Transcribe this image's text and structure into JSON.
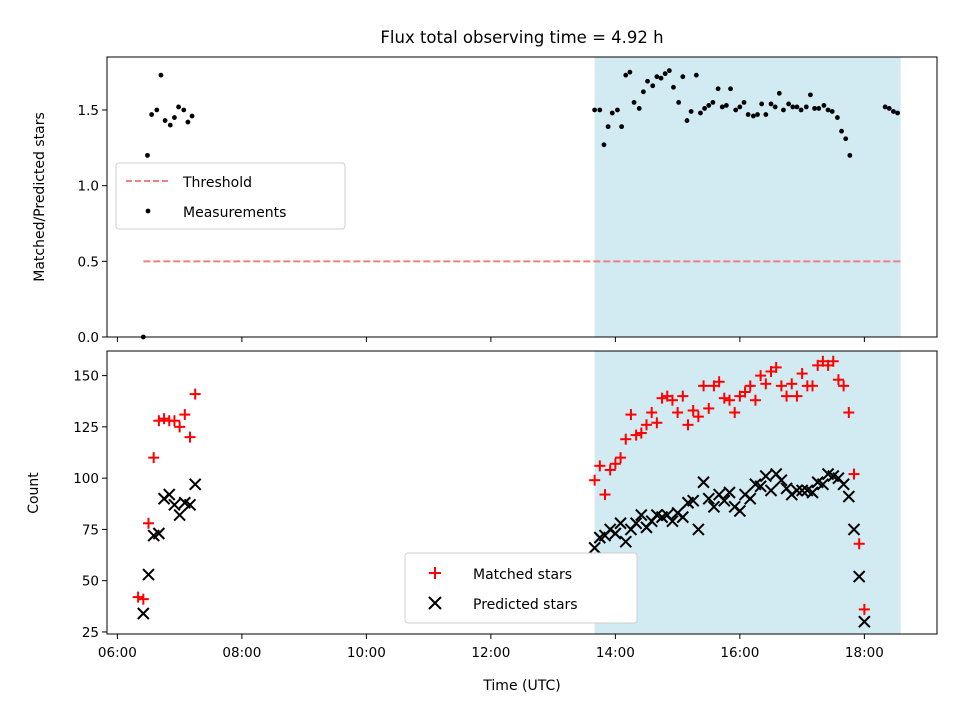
{
  "figure": {
    "title": "Flux total observing time = 4.92 h",
    "shaded_window": {
      "start": "13:40",
      "end": "18:35",
      "color": "#add8e6"
    },
    "x_axis": {
      "label": "Time (UTC)",
      "ticks": [
        "06:00",
        "08:00",
        "10:00",
        "12:00",
        "14:00",
        "16:00",
        "18:00"
      ],
      "range": [
        "05:50",
        "19:10"
      ]
    }
  },
  "chart_data": [
    {
      "type": "scatter",
      "ylabel": "Matched/Predicted stars",
      "ylim": [
        0,
        1.85
      ],
      "yticks": [
        0.0,
        0.5,
        1.0,
        1.5
      ],
      "legend": {
        "position": "center-left",
        "entries": [
          "Threshold",
          "Measurements"
        ]
      },
      "series": [
        {
          "name": "Threshold",
          "kind": "dashed-line",
          "color": "#f08080",
          "points": [
            [
              "06:25",
              0.5
            ],
            [
              "18:35",
              0.5
            ]
          ]
        },
        {
          "name": "Measurements",
          "kind": "dot",
          "color": "#000000",
          "points": [
            [
              "06:25",
              0.0
            ],
            [
              "06:29",
              1.2
            ],
            [
              "06:33",
              1.47
            ],
            [
              "06:38",
              1.5
            ],
            [
              "06:42",
              1.73
            ],
            [
              "06:46",
              1.43
            ],
            [
              "06:51",
              1.4
            ],
            [
              "06:55",
              1.45
            ],
            [
              "06:59",
              1.52
            ],
            [
              "07:04",
              1.5
            ],
            [
              "07:08",
              1.42
            ],
            [
              "07:12",
              1.46
            ],
            [
              "13:40",
              1.5
            ],
            [
              "13:45",
              1.5
            ],
            [
              "13:49",
              1.27
            ],
            [
              "13:53",
              1.39
            ],
            [
              "13:57",
              1.48
            ],
            [
              "14:02",
              1.5
            ],
            [
              "14:06",
              1.39
            ],
            [
              "14:10",
              1.73
            ],
            [
              "14:14",
              1.75
            ],
            [
              "14:18",
              1.55
            ],
            [
              "14:23",
              1.51
            ],
            [
              "14:27",
              1.62
            ],
            [
              "14:31",
              1.69
            ],
            [
              "14:36",
              1.66
            ],
            [
              "14:40",
              1.72
            ],
            [
              "14:44",
              1.71
            ],
            [
              "14:48",
              1.74
            ],
            [
              "14:52",
              1.76
            ],
            [
              "14:56",
              1.65
            ],
            [
              "15:01",
              1.55
            ],
            [
              "15:05",
              1.72
            ],
            [
              "15:09",
              1.43
            ],
            [
              "15:13",
              1.49
            ],
            [
              "15:18",
              1.73
            ],
            [
              "15:22",
              1.48
            ],
            [
              "15:26",
              1.51
            ],
            [
              "15:30",
              1.53
            ],
            [
              "15:34",
              1.55
            ],
            [
              "15:39",
              1.64
            ],
            [
              "15:43",
              1.52
            ],
            [
              "15:47",
              1.53
            ],
            [
              "15:51",
              1.64
            ],
            [
              "15:56",
              1.5
            ],
            [
              "16:00",
              1.52
            ],
            [
              "16:04",
              1.55
            ],
            [
              "16:08",
              1.47
            ],
            [
              "16:13",
              1.46
            ],
            [
              "16:17",
              1.47
            ],
            [
              "16:21",
              1.54
            ],
            [
              "16:25",
              1.47
            ],
            [
              "16:30",
              1.54
            ],
            [
              "16:34",
              1.52
            ],
            [
              "16:38",
              1.61
            ],
            [
              "16:42",
              1.5
            ],
            [
              "16:47",
              1.54
            ],
            [
              "16:51",
              1.52
            ],
            [
              "16:55",
              1.52
            ],
            [
              "16:59",
              1.5
            ],
            [
              "17:04",
              1.52
            ],
            [
              "17:08",
              1.6
            ],
            [
              "17:12",
              1.51
            ],
            [
              "17:16",
              1.51
            ],
            [
              "17:21",
              1.53
            ],
            [
              "17:25",
              1.5
            ],
            [
              "17:29",
              1.49
            ],
            [
              "17:34",
              1.45
            ],
            [
              "17:38",
              1.36
            ],
            [
              "17:42",
              1.31
            ],
            [
              "17:46",
              1.2
            ],
            [
              "18:20",
              1.52
            ],
            [
              "18:24",
              1.51
            ],
            [
              "18:28",
              1.49
            ],
            [
              "18:32",
              1.48
            ]
          ]
        }
      ]
    },
    {
      "type": "scatter",
      "ylabel": "Count",
      "xlabel": "Time (UTC)",
      "ylim": [
        24,
        162
      ],
      "yticks": [
        25,
        50,
        75,
        100,
        125,
        150
      ],
      "legend": {
        "position": "bottom-center",
        "entries": [
          "Matched stars",
          "Predicted stars"
        ]
      },
      "series": [
        {
          "name": "Matched stars",
          "kind": "plus",
          "color": "#ff0000",
          "points": [
            [
              "06:20",
              42
            ],
            [
              "06:25",
              41
            ],
            [
              "06:30",
              78
            ],
            [
              "06:35",
              110
            ],
            [
              "06:40",
              128
            ],
            [
              "06:45",
              129
            ],
            [
              "06:50",
              128
            ],
            [
              "06:55",
              128
            ],
            [
              "07:00",
              125
            ],
            [
              "07:05",
              131
            ],
            [
              "07:10",
              120
            ],
            [
              "07:15",
              141
            ],
            [
              "13:40",
              99
            ],
            [
              "13:45",
              106
            ],
            [
              "13:50",
              92
            ],
            [
              "13:55",
              104
            ],
            [
              "14:00",
              107
            ],
            [
              "14:05",
              110
            ],
            [
              "14:10",
              119
            ],
            [
              "14:15",
              131
            ],
            [
              "14:20",
              121
            ],
            [
              "14:25",
              122
            ],
            [
              "14:30",
              126
            ],
            [
              "14:35",
              132
            ],
            [
              "14:40",
              127
            ],
            [
              "14:45",
              139
            ],
            [
              "14:50",
              140
            ],
            [
              "14:55",
              138
            ],
            [
              "15:00",
              132
            ],
            [
              "15:05",
              140
            ],
            [
              "15:10",
              126
            ],
            [
              "15:15",
              133
            ],
            [
              "15:20",
              130
            ],
            [
              "15:25",
              145
            ],
            [
              "15:30",
              134
            ],
            [
              "15:35",
              145
            ],
            [
              "15:40",
              147
            ],
            [
              "15:45",
              139
            ],
            [
              "15:50",
              138
            ],
            [
              "15:55",
              132
            ],
            [
              "16:00",
              140
            ],
            [
              "16:05",
              142
            ],
            [
              "16:10",
              145
            ],
            [
              "16:15",
              138
            ],
            [
              "16:20",
              150
            ],
            [
              "16:25",
              146
            ],
            [
              "16:30",
              152
            ],
            [
              "16:35",
              154
            ],
            [
              "16:40",
              145
            ],
            [
              "16:45",
              140
            ],
            [
              "16:50",
              146
            ],
            [
              "16:55",
              140
            ],
            [
              "17:00",
              151
            ],
            [
              "17:05",
              145
            ],
            [
              "17:10",
              145
            ],
            [
              "17:15",
              155
            ],
            [
              "17:20",
              157
            ],
            [
              "17:25",
              155
            ],
            [
              "17:30",
              157
            ],
            [
              "17:35",
              148
            ],
            [
              "17:40",
              145
            ],
            [
              "17:45",
              132
            ],
            [
              "17:50",
              102
            ],
            [
              "17:55",
              68
            ],
            [
              "18:00",
              36
            ]
          ]
        },
        {
          "name": "Predicted stars",
          "kind": "x",
          "color": "#000000",
          "points": [
            [
              "06:25",
              34
            ],
            [
              "06:30",
              53
            ],
            [
              "06:35",
              72
            ],
            [
              "06:40",
              73
            ],
            [
              "06:45",
              90
            ],
            [
              "06:50",
              92
            ],
            [
              "06:55",
              87
            ],
            [
              "07:00",
              82
            ],
            [
              "07:05",
              88
            ],
            [
              "07:10",
              87
            ],
            [
              "07:15",
              97
            ],
            [
              "13:40",
              66
            ],
            [
              "13:45",
              71
            ],
            [
              "13:50",
              72
            ],
            [
              "13:55",
              75
            ],
            [
              "14:00",
              73
            ],
            [
              "14:05",
              78
            ],
            [
              "14:10",
              69
            ],
            [
              "14:15",
              75
            ],
            [
              "14:20",
              78
            ],
            [
              "14:25",
              82
            ],
            [
              "14:30",
              76
            ],
            [
              "14:35",
              79
            ],
            [
              "14:40",
              82
            ],
            [
              "14:45",
              81
            ],
            [
              "14:50",
              82
            ],
            [
              "14:55",
              79
            ],
            [
              "15:00",
              83
            ],
            [
              "15:05",
              81
            ],
            [
              "15:10",
              88
            ],
            [
              "15:15",
              89
            ],
            [
              "15:20",
              75
            ],
            [
              "15:25",
              98
            ],
            [
              "15:30",
              90
            ],
            [
              "15:35",
              86
            ],
            [
              "15:40",
              92
            ],
            [
              "15:45",
              89
            ],
            [
              "15:50",
              93
            ],
            [
              "15:55",
              86
            ],
            [
              "16:00",
              84
            ],
            [
              "16:05",
              92
            ],
            [
              "16:10",
              90
            ],
            [
              "16:15",
              97
            ],
            [
              "16:20",
              96
            ],
            [
              "16:25",
              101
            ],
            [
              "16:30",
              94
            ],
            [
              "16:35",
              102
            ],
            [
              "16:40",
              99
            ],
            [
              "16:45",
              95
            ],
            [
              "16:50",
              92
            ],
            [
              "16:55",
              94
            ],
            [
              "17:00",
              94
            ],
            [
              "17:05",
              94
            ],
            [
              "17:10",
              93
            ],
            [
              "17:15",
              98
            ],
            [
              "17:20",
              97
            ],
            [
              "17:25",
              102
            ],
            [
              "17:30",
              101
            ],
            [
              "17:35",
              100
            ],
            [
              "17:40",
              97
            ],
            [
              "17:45",
              91
            ],
            [
              "17:50",
              75
            ],
            [
              "17:55",
              52
            ],
            [
              "18:00",
              30
            ]
          ]
        }
      ]
    }
  ]
}
